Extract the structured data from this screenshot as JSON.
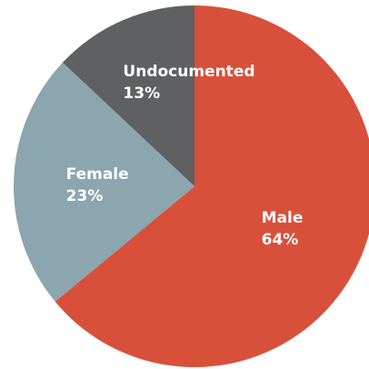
{
  "chart_data": {
    "type": "pie",
    "title": "",
    "start_angle_deg": 0,
    "direction": "clockwise",
    "slices": [
      {
        "name": "Male",
        "percent_label": "64%",
        "value": 64,
        "color": "#D9503A"
      },
      {
        "name": "Female",
        "percent_label": "23%",
        "value": 23,
        "color": "#8BA6AE"
      },
      {
        "name": "Undocumented",
        "percent_label": "13%",
        "value": 13,
        "color": "#5F6062"
      }
    ]
  }
}
